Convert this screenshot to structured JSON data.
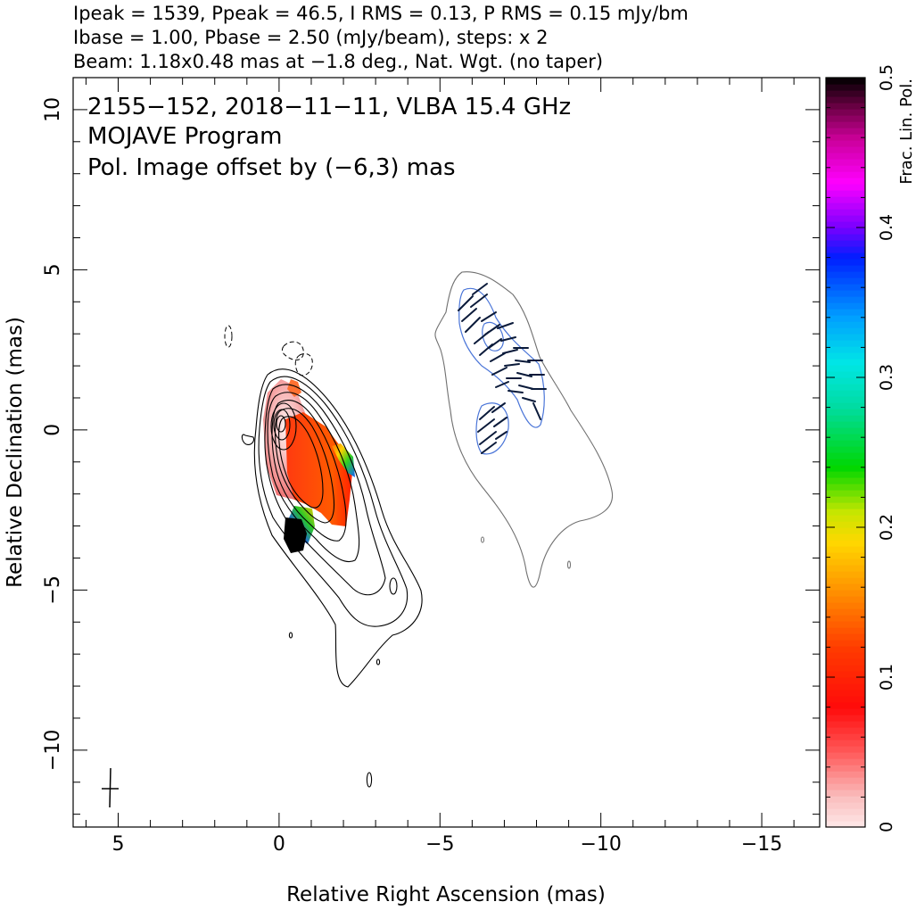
{
  "header": {
    "line1": "Ipeak = 1539, Ppeak = 46.5, I RMS = 0.13, P RMS = 0.15 mJy/bm",
    "line2": "Ibase = 1.00, Pbase = 2.50 (mJy/beam), steps: x 2",
    "line3": "Beam: 1.18x0.48 mas at −1.8 deg., Nat. Wgt. (no taper)"
  },
  "chart_data": {
    "type": "heatmap",
    "title": "2155−152, 2018−11−11, VLBA 15.4 GHz",
    "subtitle": "MOJAVE Program",
    "annotation": "Pol. Image offset by (−6,3) mas",
    "annotation_color": "#5b7fd6",
    "xlabel": "Relative Right Ascension (mas)",
    "ylabel": "Relative Declination (mas)",
    "xlim": [
      6.4,
      -16.8
    ],
    "ylim": [
      -12.4,
      11
    ],
    "x_ticks": [
      5,
      0,
      -5,
      -10,
      -15
    ],
    "x_tick_labels": [
      "5",
      "0",
      "−5",
      "−10",
      "−15"
    ],
    "y_ticks": [
      10,
      5,
      0,
      -5,
      -10
    ],
    "y_tick_labels": [
      "10",
      "5",
      "0",
      "−5",
      "−10"
    ],
    "colorbar": {
      "label": "Frac. Lin. Pol.",
      "range": [
        0,
        0.5
      ],
      "ticks": [
        0,
        0.1,
        0.2,
        0.3,
        0.4,
        0.5
      ],
      "tick_labels": [
        "0",
        "0.1",
        "0.2",
        "0.3",
        "0.4",
        "0.5"
      ]
    },
    "core": {
      "x": 0,
      "y": 0
    },
    "beam": {
      "major_mas": 1.18,
      "minor_mas": 0.48,
      "pa_deg": -1.8,
      "center": [
        5.2,
        -11.3
      ]
    },
    "polarization_offset": [
      -6,
      3
    ]
  }
}
